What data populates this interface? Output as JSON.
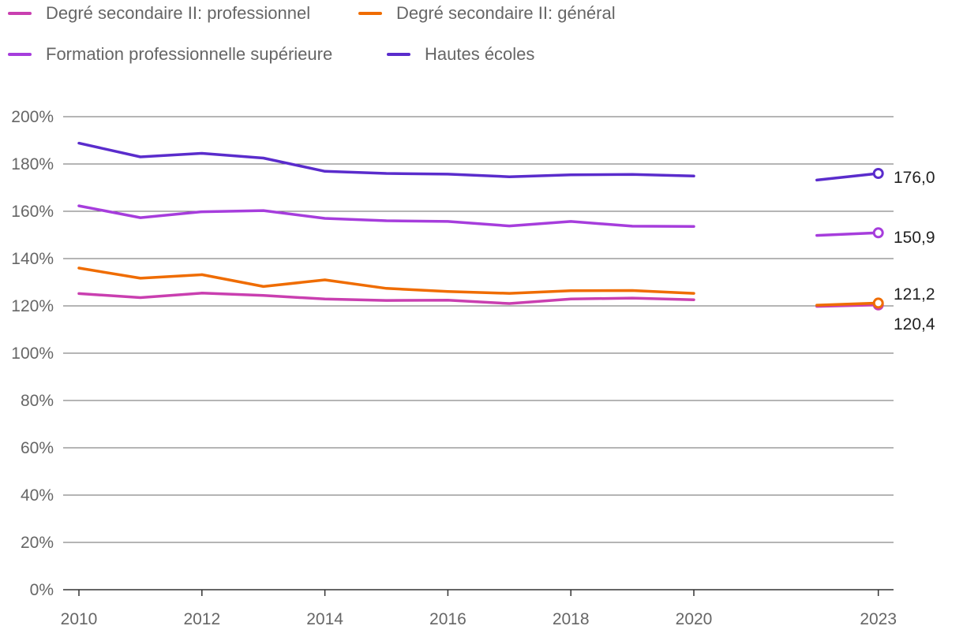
{
  "chart_data": {
    "type": "line",
    "x": [
      2010,
      2011,
      2012,
      2013,
      2014,
      2015,
      2016,
      2017,
      2018,
      2019,
      2020
    ],
    "x_recent": [
      2022,
      2023
    ],
    "series": [
      {
        "name": "Degré secondaire II: professionnel",
        "color": "#c93fb0",
        "values": [
          125.2,
          123.5,
          125.4,
          124.4,
          122.9,
          122.3,
          122.4,
          121.0,
          122.9,
          123.3,
          122.6
        ],
        "recent": [
          119.8,
          120.4
        ],
        "end_label": "120,4"
      },
      {
        "name": "Degré secondaire II: général",
        "color": "#ef6c00",
        "values": [
          136.0,
          131.7,
          133.2,
          128.2,
          131.0,
          127.4,
          126.1,
          125.3,
          126.4,
          126.5,
          125.3
        ],
        "recent": [
          120.3,
          121.2
        ],
        "end_label": "121,2"
      },
      {
        "name": "Formation professionnelle supérieure",
        "color": "#a63ddc",
        "values": [
          162.3,
          157.3,
          159.8,
          160.3,
          157.0,
          156.0,
          155.7,
          153.8,
          155.7,
          153.7,
          153.6
        ],
        "recent": [
          149.8,
          150.9
        ],
        "end_label": "150,9"
      },
      {
        "name": "Hautes écoles",
        "color": "#5a2ccc",
        "values": [
          188.8,
          183.0,
          184.5,
          182.5,
          176.9,
          176.0,
          175.7,
          174.6,
          175.4,
          175.6,
          174.9
        ],
        "recent": [
          173.2,
          176.0
        ],
        "end_label": "176,0"
      }
    ],
    "y_ticks": [
      "0%",
      "20%",
      "40%",
      "60%",
      "80%",
      "100%",
      "120%",
      "140%",
      "160%",
      "180%",
      "200%"
    ],
    "x_ticks": [
      "2010",
      "2012",
      "2014",
      "2016",
      "2018",
      "2020",
      "2023"
    ],
    "ylim": [
      0,
      200
    ],
    "grid": true,
    "legend_position": "top-left"
  }
}
